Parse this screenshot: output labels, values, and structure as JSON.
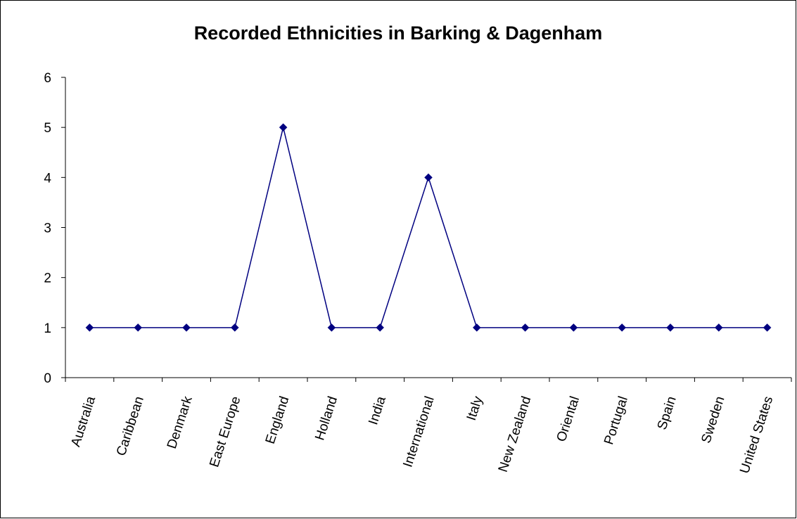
{
  "colors": {
    "series": "#000080",
    "axis": "#000000",
    "background": "#ffffff"
  },
  "chart_data": {
    "type": "line",
    "title": "Recorded Ethnicities in Barking & Dagenham",
    "xlabel": "",
    "ylabel": "",
    "ylim": [
      0,
      6
    ],
    "yticks": [
      "0",
      "1",
      "2",
      "3",
      "4",
      "5",
      "6"
    ],
    "grid": false,
    "legend": "none",
    "marker": "diamond",
    "categories": [
      "Australia",
      "Caribbean",
      "Denmark",
      "East Europe",
      "England",
      "Holland",
      "India",
      "International",
      "Italy",
      "New Zealand",
      "Oriental",
      "Portugal",
      "Spain",
      "Sweden",
      "United States"
    ],
    "series": [
      {
        "values": [
          1,
          1,
          1,
          1,
          5,
          1,
          1,
          4,
          1,
          1,
          1,
          1,
          1,
          1,
          1
        ]
      }
    ]
  }
}
